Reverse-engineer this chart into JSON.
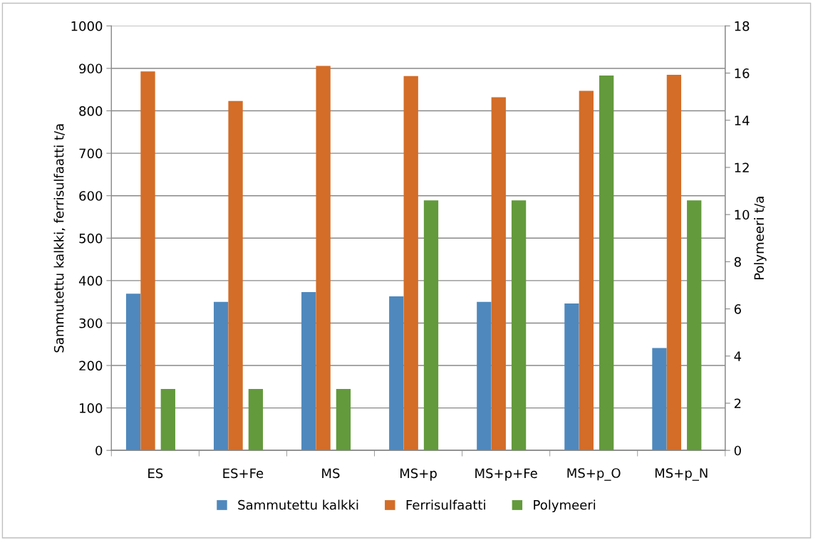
{
  "chart_data": {
    "type": "bar",
    "ylabel": "Sammutettu kalkki, ferrisulfaatti t/a",
    "y2label": "Polymeeri t/a",
    "categories": [
      "ES",
      "ES+Fe",
      "MS",
      "MS+p",
      "MS+p+Fe",
      "MS+p_O",
      "MS+p_N"
    ],
    "series": [
      {
        "name": "Sammutettu kalkki",
        "color": "#4f88bd",
        "values": [
          369,
          350,
          373,
          363,
          350,
          346,
          241
        ]
      },
      {
        "name": "Ferrisulfaatti",
        "color": "#d36d28",
        "values": [
          893,
          823,
          906,
          882,
          832,
          847,
          885
        ]
      },
      {
        "name": "Polymeeri",
        "color": "#639a3c",
        "axis": "y2",
        "values": [
          2.6,
          2.6,
          2.6,
          10.6,
          10.6,
          15.9,
          10.6
        ]
      }
    ],
    "ylim": [
      0,
      1000
    ],
    "yticks": [
      0,
      100,
      200,
      300,
      400,
      500,
      600,
      700,
      800,
      900,
      1000
    ],
    "y2lim": [
      0,
      18
    ],
    "y2ticks": [
      0,
      2,
      4,
      6,
      8,
      10,
      12,
      14,
      16,
      18
    ],
    "grid": "y",
    "legend": "bottom"
  }
}
